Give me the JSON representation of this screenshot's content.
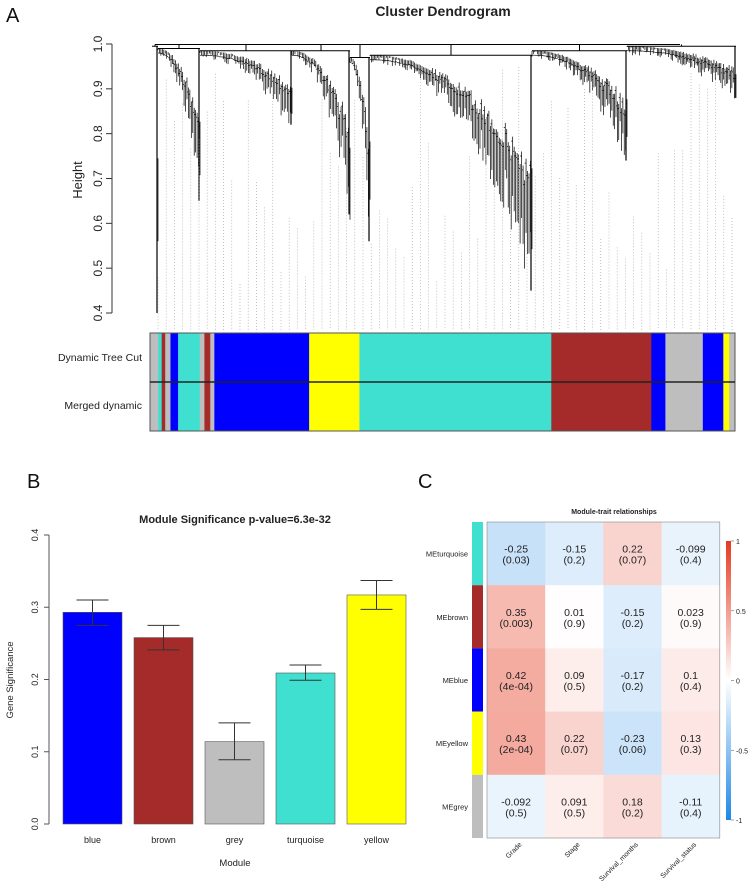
{
  "panels": {
    "a": "A",
    "b": "B",
    "c": "C"
  },
  "chart_data": [
    {
      "type": "dendrogram",
      "title": "Cluster Dendrogram",
      "ylabel": "Height",
      "ylim": [
        0.4,
        1.0
      ],
      "yticks": [
        "0.4",
        "0.5",
        "0.6",
        "0.7",
        "0.8",
        "0.9",
        "1.0"
      ],
      "color_rows": [
        {
          "label": "Dynamic Tree Cut"
        },
        {
          "label": "Merged dynamic"
        }
      ],
      "module_color_order": [
        "grey",
        "brown",
        "blue",
        "turquoise",
        "brown",
        "blue",
        "yellow",
        "turquoise",
        "brown",
        "blue",
        "yellow"
      ],
      "colors": {
        "blue": "#0000FF",
        "brown": "#A52A2A",
        "grey": "#BEBEBE",
        "turquoise": "#40E0D0",
        "yellow": "#FFFF00"
      }
    },
    {
      "type": "bar",
      "title": "Module Significance p-value=6.3e-32",
      "xlabel": "Module",
      "ylabel": "Gene Significance",
      "ylim": [
        0,
        0.4
      ],
      "yticks": [
        "0.0",
        "0.1",
        "0.2",
        "0.3",
        "0.4"
      ],
      "categories": [
        "blue",
        "brown",
        "grey",
        "turquoise",
        "yellow"
      ],
      "values": [
        0.293,
        0.258,
        0.114,
        0.209,
        0.317
      ],
      "error_low": [
        0.275,
        0.241,
        0.089,
        0.199,
        0.297
      ],
      "error_high": [
        0.31,
        0.275,
        0.14,
        0.22,
        0.337
      ],
      "colors": [
        "#0000FF",
        "#A52A2A",
        "#BEBEBE",
        "#40E0D0",
        "#FFFF00"
      ]
    },
    {
      "type": "heatmap",
      "title": "Module-trait relationships",
      "rows": [
        "MEturquoise",
        "MEbrown",
        "MEblue",
        "MEyellow",
        "MEgrey"
      ],
      "row_colors": [
        "#40E0D0",
        "#A52A2A",
        "#0000FF",
        "#FFFF00",
        "#BEBEBE"
      ],
      "columns": [
        "Grade",
        "Stage",
        "Survival_months",
        "Survival_status"
      ],
      "values": [
        [
          -0.25,
          -0.15,
          0.22,
          -0.099
        ],
        [
          0.35,
          0.01,
          -0.15,
          0.023
        ],
        [
          0.42,
          0.09,
          -0.17,
          0.1
        ],
        [
          0.43,
          0.22,
          -0.23,
          0.13
        ],
        [
          -0.092,
          0.091,
          0.18,
          -0.11
        ]
      ],
      "pvalues": [
        [
          "(0.03)",
          "(0.2)",
          "(0.07)",
          "(0.4)"
        ],
        [
          "(0.003)",
          "(0.9)",
          "(0.2)",
          "(0.9)"
        ],
        [
          "(4e-04)",
          "(0.5)",
          "(0.2)",
          "(0.4)"
        ],
        [
          "(2e-04)",
          "(0.07)",
          "(0.06)",
          "(0.3)"
        ],
        [
          "(0.5)",
          "(0.5)",
          "(0.2)",
          "(0.4)"
        ]
      ],
      "value_labels": [
        [
          "-0.25",
          "-0.15",
          "0.22",
          "-0.099"
        ],
        [
          "0.35",
          "0.01",
          "-0.15",
          "0.023"
        ],
        [
          "0.42",
          "0.09",
          "-0.17",
          "0.1"
        ],
        [
          "0.43",
          "0.22",
          "-0.23",
          "0.13"
        ],
        [
          "-0.092",
          "0.091",
          "0.18",
          "-0.11"
        ]
      ],
      "colorscale": {
        "min": -1,
        "max": 1,
        "ticks": [
          "1",
          "0.5",
          "0",
          "-0.5",
          "-1"
        ],
        "low": "#1E88E5",
        "mid": "#FFFFFF",
        "high": "#E53920"
      }
    }
  ]
}
